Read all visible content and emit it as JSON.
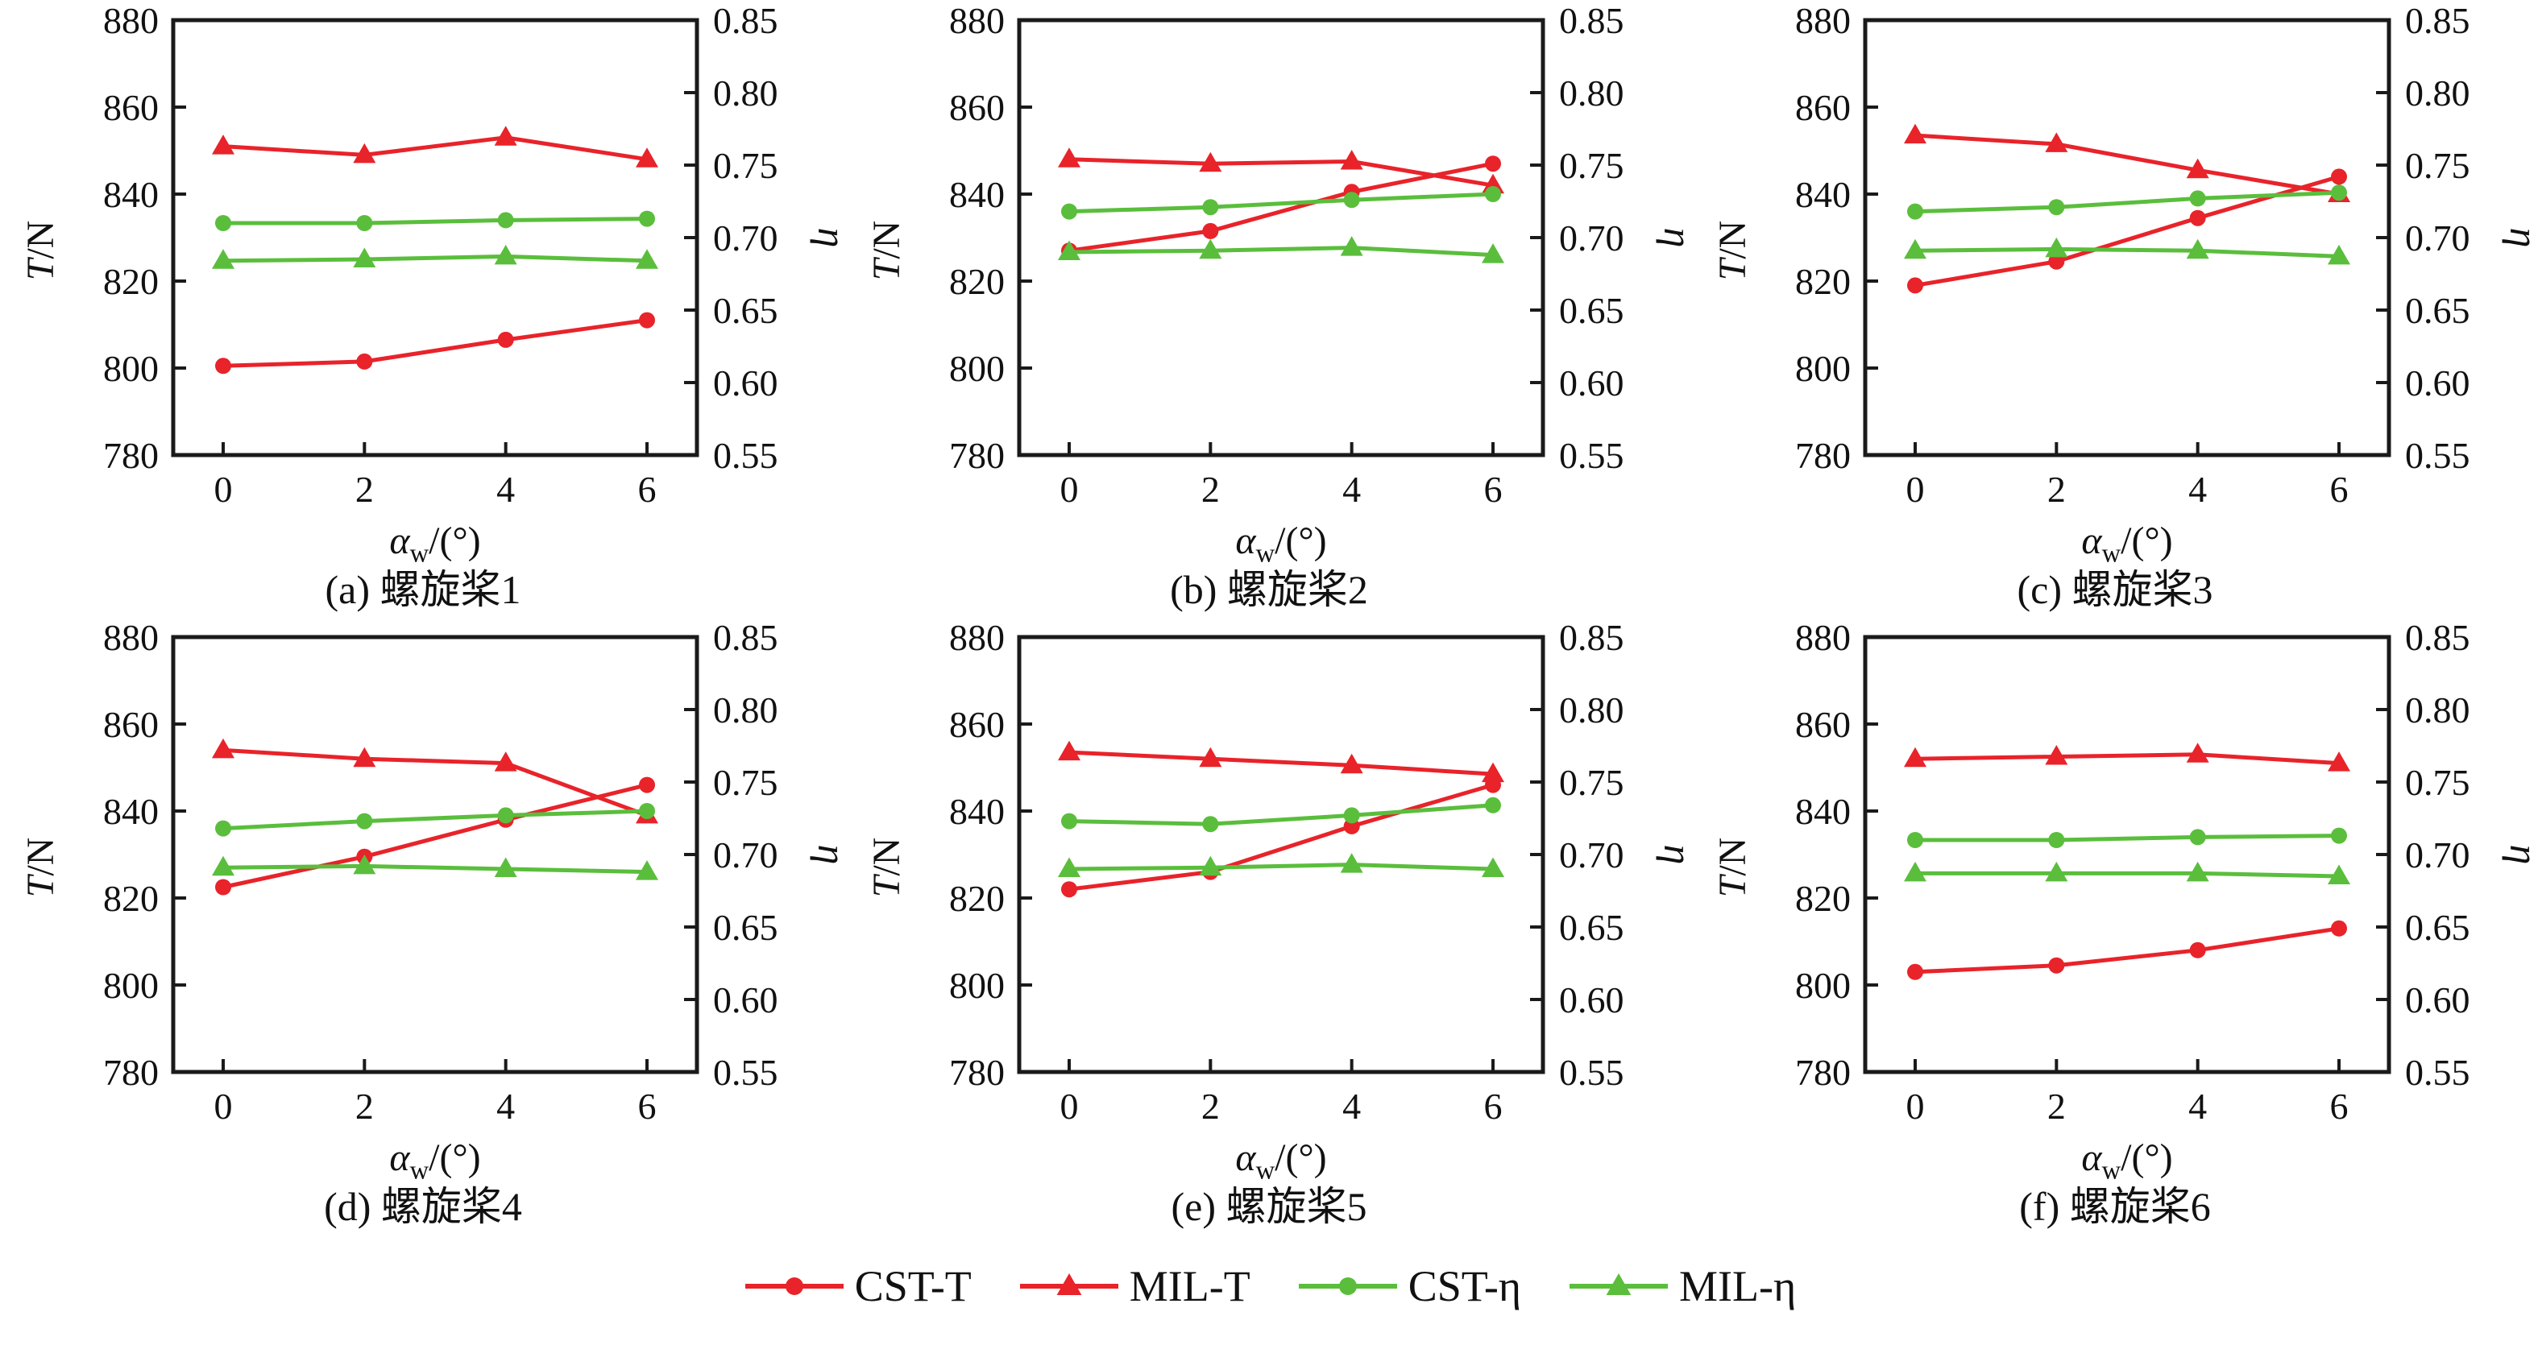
{
  "figure": {
    "background": "#ffffff",
    "axis_color": "#1a1a1a",
    "red": "#e8232a",
    "green": "#5abe3c"
  },
  "axes": {
    "x_label_parts": [
      {
        "text": "α",
        "italic": true
      },
      {
        "text": "w",
        "sub": true
      },
      {
        "text": "/(°)"
      }
    ],
    "left_label_parts": [
      {
        "text": "T",
        "italic": true
      },
      {
        "text": "/N"
      }
    ],
    "right_label_parts": [
      {
        "text": "η",
        "italic": true
      }
    ],
    "x_range": [
      0,
      6
    ],
    "left_range": [
      780,
      880
    ],
    "right_range": [
      0.55,
      0.85
    ],
    "x_ticks": [
      {
        "v": 0,
        "label": "0"
      },
      {
        "v": 2,
        "label": "2"
      },
      {
        "v": 4,
        "label": "4"
      },
      {
        "v": 6,
        "label": "6"
      }
    ],
    "left_ticks": [
      {
        "v": 780,
        "label": "780"
      },
      {
        "v": 800,
        "label": "800"
      },
      {
        "v": 820,
        "label": "820"
      },
      {
        "v": 840,
        "label": "840"
      },
      {
        "v": 860,
        "label": "860"
      },
      {
        "v": 880,
        "label": "880"
      }
    ],
    "right_ticks": [
      {
        "v": 0.55,
        "label": "0.55"
      },
      {
        "v": 0.6,
        "label": "0.60"
      },
      {
        "v": 0.65,
        "label": "0.65"
      },
      {
        "v": 0.7,
        "label": "0.70"
      },
      {
        "v": 0.75,
        "label": "0.75"
      },
      {
        "v": 0.8,
        "label": "0.80"
      },
      {
        "v": 0.85,
        "label": "0.85"
      }
    ],
    "grid": false
  },
  "legend": [
    {
      "label": "CST-T",
      "marker": "circle",
      "color": "#e8232a"
    },
    {
      "label": "MIL-T",
      "marker": "triangle",
      "color": "#e8232a"
    },
    {
      "label": "CST-η",
      "marker": "circle",
      "color": "#5abe3c"
    },
    {
      "label": "MIL-η",
      "marker": "triangle",
      "color": "#5abe3c"
    }
  ],
  "chart_data": [
    {
      "type": "line",
      "title": "(a) 螺旋桨1",
      "x": [
        0,
        2,
        4,
        6
      ],
      "series": [
        {
          "name": "CST-T",
          "axis": "left",
          "marker": "circle",
          "color": "#e8232a",
          "values": [
            800.5,
            801.5,
            806.5,
            811
          ]
        },
        {
          "name": "MIL-T",
          "axis": "left",
          "marker": "triangle",
          "color": "#e8232a",
          "values": [
            851,
            849,
            853,
            848
          ]
        },
        {
          "name": "CST-η",
          "axis": "right",
          "marker": "circle",
          "color": "#5abe3c",
          "values": [
            0.71,
            0.71,
            0.712,
            0.713
          ]
        },
        {
          "name": "MIL-η",
          "axis": "right",
          "marker": "triangle",
          "color": "#5abe3c",
          "values": [
            0.684,
            0.685,
            0.687,
            0.684
          ]
        }
      ]
    },
    {
      "type": "line",
      "title": "(b) 螺旋桨2",
      "x": [
        0,
        2,
        4,
        6
      ],
      "series": [
        {
          "name": "CST-T",
          "axis": "left",
          "marker": "circle",
          "color": "#e8232a",
          "values": [
            827,
            831.5,
            840.5,
            847
          ]
        },
        {
          "name": "MIL-T",
          "axis": "left",
          "marker": "triangle",
          "color": "#e8232a",
          "values": [
            848,
            847,
            847.5,
            842
          ]
        },
        {
          "name": "CST-η",
          "axis": "right",
          "marker": "circle",
          "color": "#5abe3c",
          "values": [
            0.718,
            0.721,
            0.726,
            0.73
          ]
        },
        {
          "name": "MIL-η",
          "axis": "right",
          "marker": "triangle",
          "color": "#5abe3c",
          "values": [
            0.69,
            0.691,
            0.693,
            0.688
          ]
        }
      ]
    },
    {
      "type": "line",
      "title": "(c) 螺旋桨3",
      "x": [
        0,
        2,
        4,
        6
      ],
      "series": [
        {
          "name": "CST-T",
          "axis": "left",
          "marker": "circle",
          "color": "#e8232a",
          "values": [
            819,
            824.5,
            834.5,
            844
          ]
        },
        {
          "name": "MIL-T",
          "axis": "left",
          "marker": "triangle",
          "color": "#e8232a",
          "values": [
            853.5,
            851.5,
            845.5,
            840
          ]
        },
        {
          "name": "CST-η",
          "axis": "right",
          "marker": "circle",
          "color": "#5abe3c",
          "values": [
            0.718,
            0.721,
            0.727,
            0.731
          ]
        },
        {
          "name": "MIL-η",
          "axis": "right",
          "marker": "triangle",
          "color": "#5abe3c",
          "values": [
            0.691,
            0.692,
            0.691,
            0.687
          ]
        }
      ]
    },
    {
      "type": "line",
      "title": "(d) 螺旋桨4",
      "x": [
        0,
        2,
        4,
        6
      ],
      "series": [
        {
          "name": "CST-T",
          "axis": "left",
          "marker": "circle",
          "color": "#e8232a",
          "values": [
            822.5,
            829.5,
            838,
            846
          ]
        },
        {
          "name": "MIL-T",
          "axis": "left",
          "marker": "triangle",
          "color": "#e8232a",
          "values": [
            854,
            852,
            851,
            839
          ]
        },
        {
          "name": "CST-η",
          "axis": "right",
          "marker": "circle",
          "color": "#5abe3c",
          "values": [
            0.718,
            0.723,
            0.727,
            0.73
          ]
        },
        {
          "name": "MIL-η",
          "axis": "right",
          "marker": "triangle",
          "color": "#5abe3c",
          "values": [
            0.691,
            0.692,
            0.69,
            0.688
          ]
        }
      ]
    },
    {
      "type": "line",
      "title": "(e) 螺旋桨5",
      "x": [
        0,
        2,
        4,
        6
      ],
      "series": [
        {
          "name": "CST-T",
          "axis": "left",
          "marker": "circle",
          "color": "#e8232a",
          "values": [
            822,
            826,
            836.5,
            846
          ]
        },
        {
          "name": "MIL-T",
          "axis": "left",
          "marker": "triangle",
          "color": "#e8232a",
          "values": [
            853.5,
            852,
            850.5,
            848.5
          ]
        },
        {
          "name": "CST-η",
          "axis": "right",
          "marker": "circle",
          "color": "#5abe3c",
          "values": [
            0.723,
            0.721,
            0.727,
            0.734
          ]
        },
        {
          "name": "MIL-η",
          "axis": "right",
          "marker": "triangle",
          "color": "#5abe3c",
          "values": [
            0.69,
            0.691,
            0.693,
            0.69
          ]
        }
      ]
    },
    {
      "type": "line",
      "title": "(f) 螺旋桨6",
      "x": [
        0,
        2,
        4,
        6
      ],
      "series": [
        {
          "name": "CST-T",
          "axis": "left",
          "marker": "circle",
          "color": "#e8232a",
          "values": [
            803,
            804.5,
            808,
            813
          ]
        },
        {
          "name": "MIL-T",
          "axis": "left",
          "marker": "triangle",
          "color": "#e8232a",
          "values": [
            852,
            852.5,
            853,
            851
          ]
        },
        {
          "name": "CST-η",
          "axis": "right",
          "marker": "circle",
          "color": "#5abe3c",
          "values": [
            0.71,
            0.71,
            0.712,
            0.713
          ]
        },
        {
          "name": "MIL-η",
          "axis": "right",
          "marker": "triangle",
          "color": "#5abe3c",
          "values": [
            0.687,
            0.687,
            0.687,
            0.685
          ]
        }
      ]
    }
  ]
}
